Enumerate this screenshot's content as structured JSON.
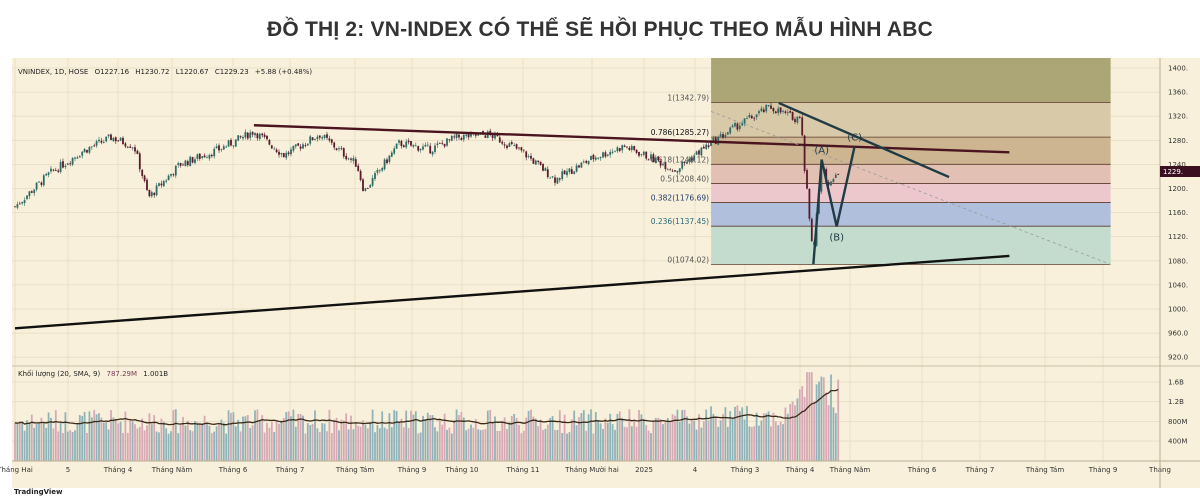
{
  "title": "ĐỒ THỊ 2: VN-INDEX CÓ THỂ SẼ HỒI PHỤC THEO MẪU HÌNH ABC",
  "chart_data": {
    "type": "candlestick",
    "legend": {
      "symbol": "VNINDEX, 1D, HOSE",
      "open": "O1227.16",
      "high": "H1230.72",
      "low": "L1220.67",
      "close": "C1229.23",
      "change": "+5.88 (+0.48%)"
    },
    "volume_legend": {
      "name": "Khối lượng (20, SMA, 9)",
      "value1": "787.29M",
      "value2": "1.001B"
    },
    "last_price_label": "1229.",
    "y_axis": {
      "range": [
        920,
        1400
      ],
      "ticks": [
        "1400.",
        "1360.",
        "1320.",
        "1280.",
        "1240.",
        "1200.",
        "1160.",
        "1120.",
        "1080.",
        "1040.",
        "1000.",
        "960.0",
        "920.0"
      ],
      "tick_values": [
        1400,
        1360,
        1320,
        1280,
        1240,
        1200,
        1160,
        1120,
        1080,
        1040,
        1000,
        960,
        920
      ]
    },
    "volume_axis": {
      "ticks": [
        "1.6B",
        "1.2B",
        "800M",
        "400M"
      ],
      "tick_values": [
        1.6,
        1.2,
        0.8,
        0.4
      ]
    },
    "x_axis": {
      "ticks": [
        "Tháng Hai",
        "5",
        "Tháng 4",
        "Tháng Năm",
        "Tháng 6",
        "Tháng 7",
        "Tháng Tám",
        "Tháng 9",
        "Tháng 10",
        "Tháng 11",
        "Tháng Mười hai",
        "2025",
        "4",
        "Tháng 3",
        "Tháng 4",
        "Tháng Năm",
        "Tháng 6",
        "Tháng 7",
        "Tháng Tám",
        "Tháng 9",
        "Tháng"
      ],
      "tick_months": [
        "2024-02",
        "2024-03",
        "2024-04",
        "2024-05",
        "2024-06",
        "2024-07",
        "2024-08",
        "2024-09",
        "2024-10",
        "2024-11",
        "2024-12",
        "2025-01",
        "2025-02",
        "2025-03",
        "2025-04",
        "2025-05",
        "2025-06",
        "2025-07",
        "2025-08",
        "2025-09",
        "2025-10"
      ]
    },
    "price_path": [
      {
        "date": "2024-02-01",
        "close": 1170
      },
      {
        "date": "2024-02-20",
        "close": 1225
      },
      {
        "date": "2024-03-10",
        "close": 1262
      },
      {
        "date": "2024-03-28",
        "close": 1285
      },
      {
        "date": "2024-04-10",
        "close": 1270
      },
      {
        "date": "2024-04-18",
        "close": 1185
      },
      {
        "date": "2024-05-05",
        "close": 1240
      },
      {
        "date": "2024-05-25",
        "close": 1265
      },
      {
        "date": "2024-06-12",
        "close": 1295
      },
      {
        "date": "2024-06-28",
        "close": 1255
      },
      {
        "date": "2024-07-15",
        "close": 1290
      },
      {
        "date": "2024-08-02",
        "close": 1240
      },
      {
        "date": "2024-08-06",
        "close": 1195
      },
      {
        "date": "2024-08-25",
        "close": 1275
      },
      {
        "date": "2024-09-12",
        "close": 1265
      },
      {
        "date": "2024-09-28",
        "close": 1285
      },
      {
        "date": "2024-10-15",
        "close": 1290
      },
      {
        "date": "2024-11-01",
        "close": 1260
      },
      {
        "date": "2024-11-15",
        "close": 1215
      },
      {
        "date": "2024-12-01",
        "close": 1250
      },
      {
        "date": "2024-12-20",
        "close": 1270
      },
      {
        "date": "2025-01-10",
        "close": 1245
      },
      {
        "date": "2025-01-20",
        "close": 1230
      },
      {
        "date": "2025-02-05",
        "close": 1265
      },
      {
        "date": "2025-02-25",
        "close": 1305
      },
      {
        "date": "2025-03-15",
        "close": 1335
      },
      {
        "date": "2025-03-28",
        "close": 1318
      },
      {
        "date": "2025-04-02",
        "close": 1315
      },
      {
        "date": "2025-04-03",
        "close": 1250
      },
      {
        "date": "2025-04-09",
        "close": 1095
      },
      {
        "date": "2025-04-14",
        "close": 1240
      },
      {
        "date": "2025-04-18",
        "close": 1205
      },
      {
        "date": "2025-04-24",
        "close": 1229
      }
    ],
    "fibonacci": {
      "levels": [
        {
          "ratio": "1",
          "price": 1342.79,
          "label": "1(1342.79)",
          "color": "#d8c9a8"
        },
        {
          "ratio": "0.786",
          "price": 1285.27,
          "label": "0.786(1285.27)",
          "color": "#cdb592"
        },
        {
          "ratio": "0.618",
          "price": 1240.12,
          "label": "0.618(1240.12)",
          "color": "#e3c0b4"
        },
        {
          "ratio": "0.5",
          "price": 1208.4,
          "label": "0.5(1208.40)",
          "color": "#ecc8cc"
        },
        {
          "ratio": "0.382",
          "price": 1176.69,
          "label": "0.382(1176.69)",
          "color": "#b0bfdc"
        },
        {
          "ratio": "0.236",
          "price": 1137.45,
          "label": "0.236(1137.45)",
          "color": "#c4dccd"
        },
        {
          "ratio": "0",
          "price": 1074.02,
          "label": "0(1074.02)",
          "color": "#c4dccd"
        }
      ],
      "top_band_color": "#aca676",
      "start": "2025-02-10",
      "end": "2025-09-05"
    },
    "trendlines": [
      {
        "name": "long-term-support",
        "from": {
          "date": "2024-02-01",
          "price": 968
        },
        "to": {
          "date": "2025-07-15",
          "price": 1088
        },
        "color": "#111111"
      },
      {
        "name": "horizontal-resistance",
        "from": {
          "date": "2024-06-12",
          "price": 1305
        },
        "to": {
          "date": "2025-07-15",
          "price": 1260
        },
        "color": "#4a1420"
      },
      {
        "name": "downtrend",
        "from": {
          "date": "2025-03-20",
          "price": 1342
        },
        "to": {
          "date": "2025-06-15",
          "price": 1219
        },
        "color": "#1f3b44"
      },
      {
        "name": "dashed-diagonal",
        "from": {
          "date": "2025-02-10",
          "price": 1328
        },
        "to": {
          "date": "2025-09-05",
          "price": 1074
        },
        "color": "#999999"
      }
    ],
    "abc_pattern": {
      "points": [
        {
          "label": "",
          "date": "2025-04-09",
          "price": 1074
        },
        {
          "label": "(A)",
          "date": "2025-04-14",
          "price": 1248
        },
        {
          "label": "(B)",
          "date": "2025-04-23",
          "price": 1137
        },
        {
          "label": "(C)",
          "date": "2025-05-03",
          "price": 1270
        }
      ],
      "color": "#1f3b44"
    },
    "colors": {
      "up": "#2e6b66",
      "down": "#5a1a2a",
      "background": "#f8f0da",
      "volume_up": "#8fb3b8",
      "volume_down": "#d7a9b4",
      "sma": "#3a2a18"
    }
  },
  "footer": {
    "logo": "TradingView"
  }
}
